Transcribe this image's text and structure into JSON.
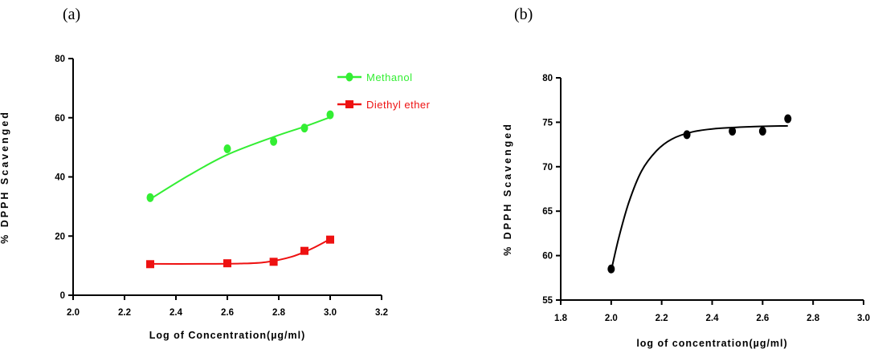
{
  "panels": {
    "a_label": "(a)",
    "b_label": "(b)"
  },
  "colors": {
    "methanol": "#33ee33",
    "diethyl_ether": "#ee1111",
    "panel_b": "#000000"
  },
  "chart_data": [
    {
      "type": "scatter",
      "panel": "(a)",
      "xlabel": "Log of Concentration(µg/ml)",
      "ylabel": "% DPPH Scavenged",
      "xlim": [
        2.0,
        3.2
      ],
      "ylim": [
        0,
        80
      ],
      "xticks": [
        2.0,
        2.2,
        2.4,
        2.6,
        2.8,
        3.0,
        3.2
      ],
      "yticks": [
        0,
        20,
        40,
        60,
        80
      ],
      "xtick_labels": [
        "2.0",
        "2.2",
        "2.4",
        "2.6",
        "2.8",
        "3.0",
        "3.2"
      ],
      "ytick_labels": [
        "0",
        "20",
        "40",
        "60",
        "80"
      ],
      "grid": false,
      "legend_position": "top-right",
      "series": [
        {
          "name": "Methanol",
          "marker": "circle",
          "color": "#33ee33",
          "x": [
            2.3,
            2.6,
            2.78,
            2.9,
            3.0
          ],
          "y": [
            33,
            49.5,
            52,
            56.5,
            61
          ],
          "fit": [
            [
              2.3,
              32.5
            ],
            [
              2.45,
              40.5
            ],
            [
              2.6,
              47.5
            ],
            [
              2.78,
              53.5
            ],
            [
              2.9,
              57
            ],
            [
              3.0,
              60.2
            ]
          ]
        },
        {
          "name": "Diethyl ether",
          "marker": "square",
          "color": "#ee1111",
          "x": [
            2.3,
            2.6,
            2.78,
            2.9,
            3.0
          ],
          "y": [
            10.5,
            10.8,
            11.3,
            15,
            18.8
          ],
          "fit": [
            [
              2.3,
              10.6
            ],
            [
              2.5,
              10.6
            ],
            [
              2.65,
              10.7
            ],
            [
              2.75,
              11.2
            ],
            [
              2.85,
              13
            ],
            [
              2.93,
              15.8
            ],
            [
              3.0,
              19
            ]
          ]
        }
      ]
    },
    {
      "type": "scatter",
      "panel": "(b)",
      "xlabel": "log of concentration(µg/ml)",
      "ylabel": "% DPPH Scavenged",
      "xlim": [
        1.8,
        3.0
      ],
      "ylim": [
        55,
        80
      ],
      "xticks": [
        1.8,
        2.0,
        2.2,
        2.4,
        2.6,
        2.8,
        3.0
      ],
      "yticks": [
        55,
        60,
        65,
        70,
        75,
        80
      ],
      "xtick_labels": [
        "1.8",
        "2.0",
        "2.2",
        "2.4",
        "2.6",
        "2.8",
        "3.0"
      ],
      "ytick_labels": [
        "55",
        "60",
        "65",
        "70",
        "75",
        "80"
      ],
      "grid": false,
      "series": [
        {
          "marker": "circle",
          "color": "#000000",
          "x": [
            2.0,
            2.3,
            2.48,
            2.6,
            2.7
          ],
          "y": [
            58.5,
            73.6,
            74.0,
            74.0,
            75.4
          ],
          "fit": [
            [
              2.0,
              58.3
            ],
            [
              2.03,
              62
            ],
            [
              2.07,
              66
            ],
            [
              2.12,
              69.5
            ],
            [
              2.18,
              71.8
            ],
            [
              2.24,
              73.1
            ],
            [
              2.32,
              73.9
            ],
            [
              2.42,
              74.3
            ],
            [
              2.55,
              74.5
            ],
            [
              2.7,
              74.6
            ]
          ]
        }
      ]
    }
  ]
}
